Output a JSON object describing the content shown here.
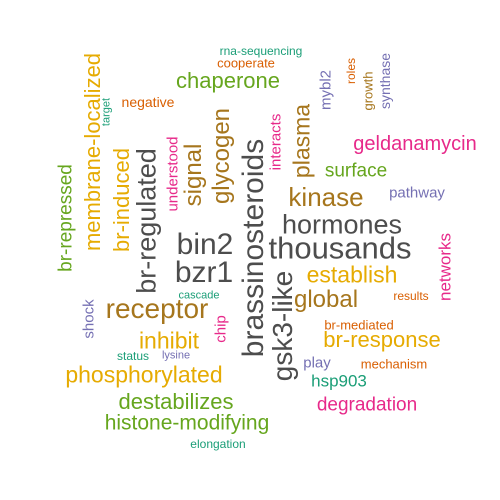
{
  "palette": {
    "gray": "#4d4d4d",
    "brown": "#a6761d",
    "green": "#66a61e",
    "pink": "#e7298a",
    "orange": "#d95f02",
    "teal": "#1b9e77",
    "purple": "#7570b3",
    "gold": "#e6ab02"
  },
  "words": [
    {
      "text": "brassinosteroids",
      "color": "gray",
      "vertical": true
    },
    {
      "text": "thousands",
      "color": "gray",
      "vertical": false
    },
    {
      "text": "bin2",
      "color": "gray",
      "vertical": false
    },
    {
      "text": "bzr1",
      "color": "gray",
      "vertical": false
    },
    {
      "text": "gsk3-like",
      "color": "gray",
      "vertical": true
    },
    {
      "text": "br-regulated",
      "color": "gray",
      "vertical": true
    },
    {
      "text": "hormones",
      "color": "gray",
      "vertical": false
    },
    {
      "text": "receptor",
      "color": "brown",
      "vertical": false
    },
    {
      "text": "kinase",
      "color": "brown",
      "vertical": false
    },
    {
      "text": "global",
      "color": "brown",
      "vertical": false
    },
    {
      "text": "glycogen",
      "color": "brown",
      "vertical": true
    },
    {
      "text": "signal",
      "color": "brown",
      "vertical": true
    },
    {
      "text": "plasma",
      "color": "brown",
      "vertical": true
    },
    {
      "text": "membrane-localized",
      "color": "gold",
      "vertical": true
    },
    {
      "text": "br-induced",
      "color": "gold",
      "vertical": true
    },
    {
      "text": "phosphorylated",
      "color": "gold",
      "vertical": false
    },
    {
      "text": "inhibit",
      "color": "gold",
      "vertical": false
    },
    {
      "text": "establish",
      "color": "gold",
      "vertical": false
    },
    {
      "text": "br-response",
      "color": "gold",
      "vertical": false
    },
    {
      "text": "chaperone",
      "color": "green",
      "vertical": false
    },
    {
      "text": "surface",
      "color": "green",
      "vertical": false
    },
    {
      "text": "destabilizes",
      "color": "green",
      "vertical": false
    },
    {
      "text": "histone-modifying",
      "color": "green",
      "vertical": false
    },
    {
      "text": "br-repressed",
      "color": "green",
      "vertical": true
    },
    {
      "text": "geldanamycin",
      "color": "pink",
      "vertical": false
    },
    {
      "text": "degradation",
      "color": "pink",
      "vertical": false
    },
    {
      "text": "networks",
      "color": "pink",
      "vertical": true
    },
    {
      "text": "interacts",
      "color": "pink",
      "vertical": true
    },
    {
      "text": "understood",
      "color": "pink",
      "vertical": true
    },
    {
      "text": "chip",
      "color": "pink",
      "vertical": true
    },
    {
      "text": "hsp903",
      "color": "teal",
      "vertical": false
    },
    {
      "text": "pathway",
      "color": "purple",
      "vertical": false
    },
    {
      "text": "play",
      "color": "purple",
      "vertical": false
    },
    {
      "text": "mybl2",
      "color": "purple",
      "vertical": true
    },
    {
      "text": "synthase",
      "color": "purple",
      "vertical": true
    },
    {
      "text": "shock",
      "color": "purple",
      "vertical": true
    },
    {
      "text": "negative",
      "color": "orange",
      "vertical": false
    },
    {
      "text": "cooperate",
      "color": "orange",
      "vertical": false
    },
    {
      "text": "br-mediated",
      "color": "orange",
      "vertical": false
    },
    {
      "text": "mechanism",
      "color": "orange",
      "vertical": false
    },
    {
      "text": "results",
      "color": "orange",
      "vertical": false
    },
    {
      "text": "roles",
      "color": "orange",
      "vertical": true
    },
    {
      "text": "growth",
      "color": "brown",
      "vertical": true
    },
    {
      "text": "rna-sequencing",
      "color": "teal",
      "vertical": false
    },
    {
      "text": "target",
      "color": "teal",
      "vertical": true
    },
    {
      "text": "cascade",
      "color": "teal",
      "vertical": false
    },
    {
      "text": "status",
      "color": "teal",
      "vertical": false
    },
    {
      "text": "lysine",
      "color": "purple",
      "vertical": false
    },
    {
      "text": "elongation",
      "color": "teal",
      "vertical": false
    }
  ]
}
